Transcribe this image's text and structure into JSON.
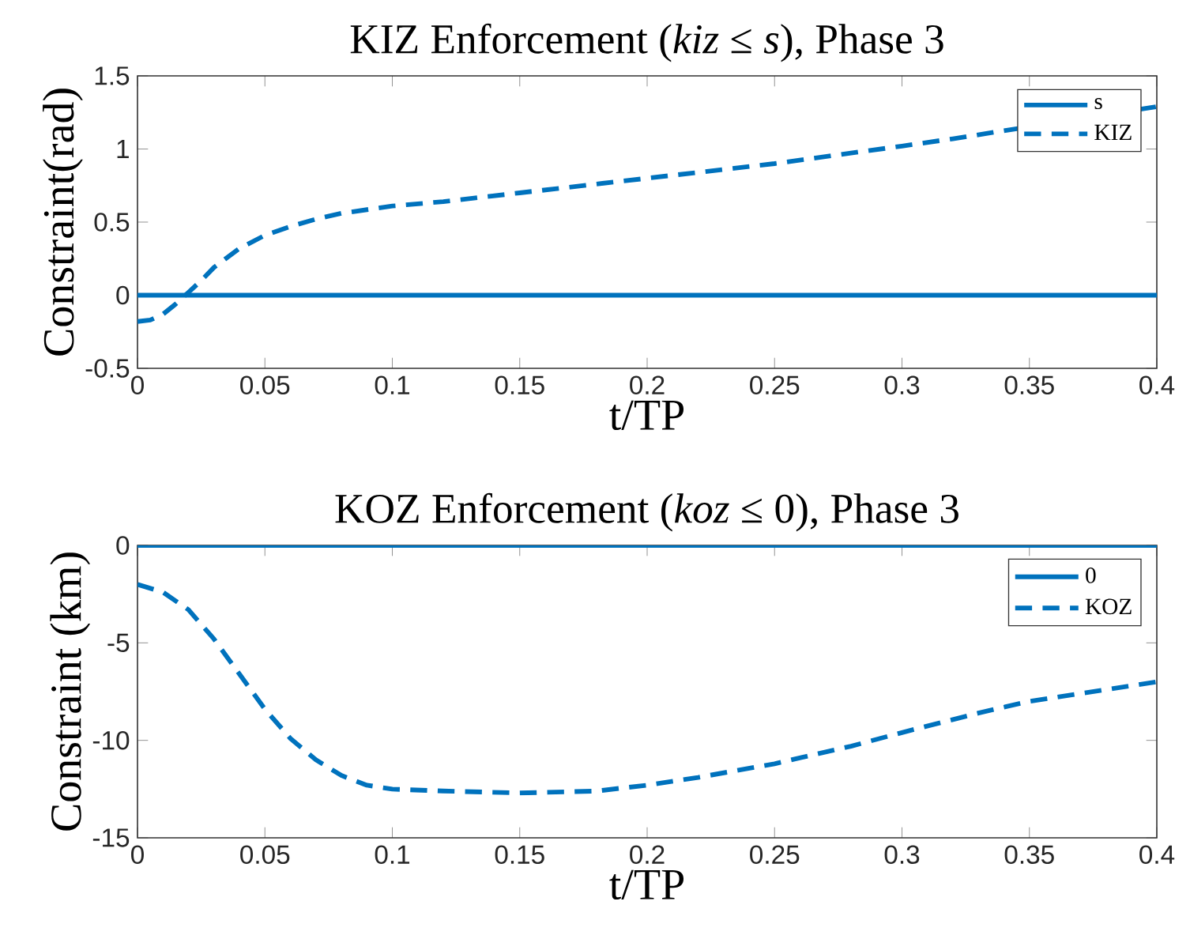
{
  "chart_data": [
    {
      "type": "line",
      "title": "KIZ Enforcement (*kiz* ≤ *s*), Phase 3",
      "xlabel": "t/TP",
      "ylabel": "Constraint(rad)",
      "xlim": [
        0,
        0.4
      ],
      "ylim": [
        -0.5,
        1.5
      ],
      "xticks": [
        0,
        0.05,
        0.1,
        0.15,
        0.2,
        0.25,
        0.3,
        0.35,
        0.4
      ],
      "yticks": [
        -0.5,
        0,
        0.5,
        1,
        1.5
      ],
      "legend": "top right",
      "grid": false,
      "series": [
        {
          "name": "s",
          "color": "#0072bd",
          "line_style": "solid",
          "x": [
            0,
            0.4
          ],
          "values": [
            0,
            0
          ]
        },
        {
          "name": "KIZ",
          "color": "#0072bd",
          "line_style": "dashed",
          "x": [
            0,
            0.005,
            0.01,
            0.015,
            0.02,
            0.025,
            0.03,
            0.04,
            0.05,
            0.06,
            0.07,
            0.08,
            0.1,
            0.12,
            0.15,
            0.2,
            0.25,
            0.3,
            0.32,
            0.4
          ],
          "values": [
            -0.18,
            -0.17,
            -0.13,
            -0.06,
            0.02,
            0.1,
            0.19,
            0.32,
            0.41,
            0.47,
            0.52,
            0.56,
            0.61,
            0.64,
            0.7,
            0.8,
            0.9,
            1.02,
            1.07,
            1.29
          ]
        }
      ]
    },
    {
      "type": "line",
      "title": "KOZ Enforcement (*koz* ≤ 0), Phase 3",
      "xlabel": "t/TP",
      "ylabel": "Constraint (km)",
      "xlim": [
        0,
        0.4
      ],
      "ylim": [
        -15,
        0
      ],
      "xticks": [
        0,
        0.05,
        0.1,
        0.15,
        0.2,
        0.25,
        0.3,
        0.35,
        0.4
      ],
      "yticks": [
        -15,
        -10,
        -5,
        0
      ],
      "legend": "top right",
      "grid": false,
      "series": [
        {
          "name": "0",
          "color": "#0072bd",
          "line_style": "solid",
          "x": [
            0,
            0.4
          ],
          "values": [
            0,
            0
          ]
        },
        {
          "name": "KOZ",
          "color": "#0072bd",
          "line_style": "dashed",
          "x": [
            0,
            0.01,
            0.02,
            0.03,
            0.04,
            0.05,
            0.06,
            0.07,
            0.08,
            0.09,
            0.1,
            0.12,
            0.15,
            0.18,
            0.2,
            0.22,
            0.25,
            0.28,
            0.3,
            0.33,
            0.35,
            0.38,
            0.4
          ],
          "values": [
            -2,
            -2.4,
            -3.3,
            -4.8,
            -6.6,
            -8.4,
            -9.9,
            -11,
            -11.8,
            -12.3,
            -12.5,
            -12.6,
            -12.7,
            -12.6,
            -12.3,
            -11.9,
            -11.2,
            -10.3,
            -9.6,
            -8.6,
            -8,
            -7.4,
            -7
          ]
        }
      ]
    }
  ]
}
